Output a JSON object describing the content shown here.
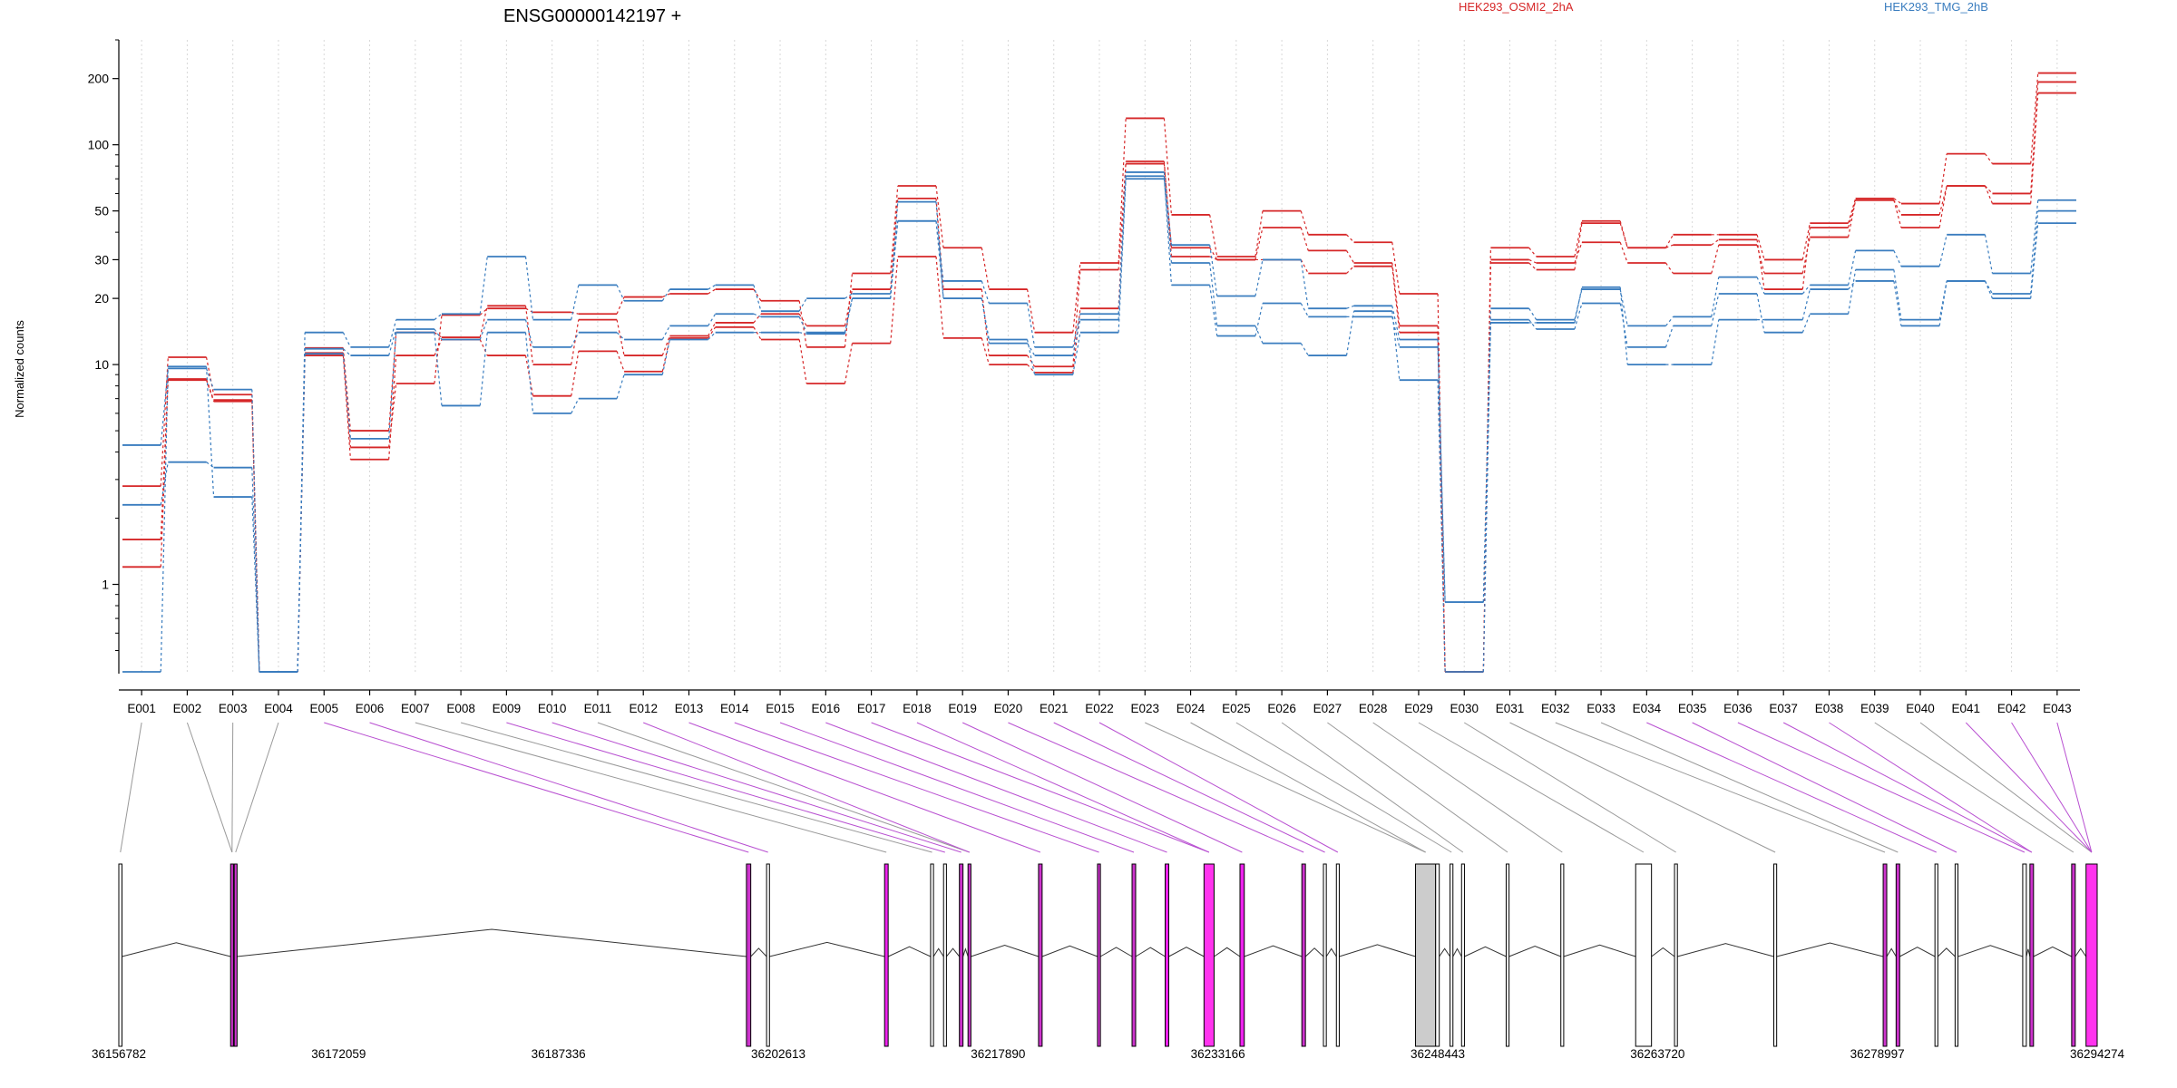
{
  "chart_data": {
    "type": "line",
    "title": "ENSG00000142197 +",
    "ylabel": "Normalized counts",
    "yscale": "log",
    "ylim": [
      0.4,
      300
    ],
    "yticks": [
      1,
      10,
      20,
      30,
      50,
      100,
      200
    ],
    "categories": [
      "E001",
      "E002",
      "E003",
      "E004",
      "E005",
      "E006",
      "E007",
      "E008",
      "E009",
      "E010",
      "E011",
      "E012",
      "E013",
      "E014",
      "E015",
      "E016",
      "E017",
      "E018",
      "E019",
      "E020",
      "E021",
      "E022",
      "E023",
      "E024",
      "E025",
      "E026",
      "E027",
      "E028",
      "E029",
      "E030",
      "E031",
      "E032",
      "E033",
      "E034",
      "E035",
      "E036",
      "E037",
      "E038",
      "E039",
      "E040",
      "E041",
      "E042",
      "E043"
    ],
    "legend": [
      {
        "name": "HEK293_OSMI2_2hA",
        "color": "#d62728"
      },
      {
        "name": "HEK293_TMG_2hB",
        "color": "#3a7dbf"
      }
    ],
    "series": [
      {
        "color": "#d62728",
        "values": [
          2.8,
          10.8,
          7.3,
          0.4,
          11.3,
          4.2,
          8.2,
          16.8,
          18.0,
          17.3,
          17.0,
          20.3,
          21.0,
          22.0,
          19.5,
          12.0,
          26.0,
          65.0,
          34.0,
          22.0,
          14.0,
          29.0,
          132.0,
          48.0,
          31.0,
          50.0,
          39.0,
          36.0,
          21.0,
          0.4,
          34.0,
          31.0,
          45.0,
          34.0,
          39.0,
          39.0,
          30.0,
          44.0,
          57.0,
          54.0,
          91.0,
          82.0,
          212.0
        ]
      },
      {
        "color": "#d62728",
        "values": [
          1.6,
          8.6,
          6.9,
          0.4,
          11.9,
          5.0,
          14.0,
          13.3,
          18.5,
          10.0,
          16.0,
          11.0,
          13.5,
          15.5,
          17.0,
          15.0,
          22.0,
          57.0,
          22.0,
          11.0,
          9.8,
          27.0,
          82.0,
          34.0,
          30.0,
          42.0,
          33.0,
          29.0,
          15.0,
          0.4,
          29.0,
          27.0,
          44.0,
          34.0,
          35.0,
          37.0,
          22.0,
          42.0,
          56.0,
          48.0,
          65.0,
          60.0,
          193.0
        ]
      },
      {
        "color": "#d62728",
        "values": [
          1.2,
          8.5,
          6.8,
          0.4,
          11.0,
          3.7,
          11.0,
          13.0,
          11.0,
          7.2,
          11.5,
          9.3,
          13.2,
          14.8,
          13.0,
          8.2,
          12.5,
          31.0,
          13.2,
          10.0,
          9.2,
          18.0,
          84.0,
          31.0,
          30.0,
          30.0,
          26.0,
          28.0,
          14.0,
          0.4,
          30.0,
          29.0,
          36.0,
          29.0,
          26.0,
          35.0,
          26.0,
          38.0,
          56.0,
          42.0,
          65.0,
          54.0,
          172.0
        ]
      },
      {
        "color": "#3a7dbf",
        "values": [
          4.3,
          9.6,
          7.7,
          0.4,
          14.0,
          12.0,
          16.0,
          17.0,
          31.0,
          16.0,
          23.0,
          19.5,
          22.0,
          23.0,
          17.5,
          20.0,
          21.0,
          45.0,
          24.0,
          19.0,
          12.0,
          17.0,
          75.0,
          35.0,
          20.5,
          30.0,
          18.0,
          18.5,
          13.0,
          0.83,
          18.0,
          16.0,
          22.0,
          15.0,
          16.5,
          25.0,
          21.0,
          23.0,
          33.0,
          28.0,
          39.0,
          26.0,
          56.0
        ]
      },
      {
        "color": "#3a7dbf",
        "values": [
          2.3,
          3.6,
          3.4,
          0.4,
          11.8,
          11.0,
          14.5,
          13.0,
          16.0,
          12.0,
          14.0,
          13.0,
          15.0,
          17.0,
          16.5,
          14.0,
          20.0,
          55.0,
          20.0,
          12.5,
          11.0,
          16.0,
          72.0,
          23.0,
          13.5,
          19.0,
          16.5,
          16.5,
          12.0,
          0.83,
          16.0,
          14.5,
          19.0,
          12.0,
          15.0,
          21.0,
          14.0,
          17.0,
          27.0,
          16.0,
          24.0,
          21.0,
          50.0
        ]
      },
      {
        "color": "#3a7dbf",
        "values": [
          0.4,
          9.8,
          2.5,
          0.4,
          11.2,
          4.6,
          14.0,
          6.5,
          14.0,
          6.0,
          7.0,
          9.0,
          13.0,
          14.0,
          14.0,
          13.8,
          20.0,
          45.0,
          20.0,
          13.0,
          9.0,
          14.0,
          70.0,
          29.0,
          15.0,
          12.5,
          11.0,
          17.5,
          8.5,
          0.4,
          15.5,
          15.5,
          22.5,
          10.0,
          10.0,
          16.0,
          16.0,
          22.0,
          24.0,
          15.0,
          24.0,
          20.0,
          44.0
        ]
      }
    ],
    "grid": "vertical dotted",
    "xaxis_genome_ticks": [
      "36156782",
      "36172059",
      "36187336",
      "36202613",
      "36217890",
      "36233166",
      "36248443",
      "36263720",
      "36278997",
      "36294274"
    ]
  }
}
